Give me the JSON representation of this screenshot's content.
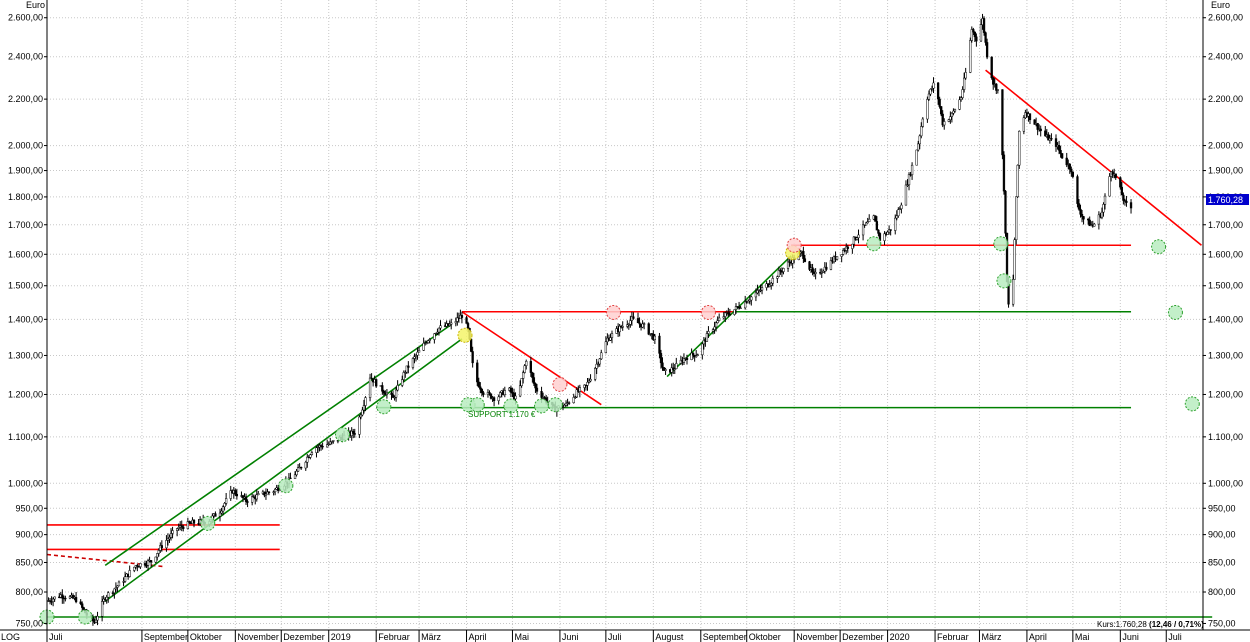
{
  "chart_data": {
    "type": "candlestick",
    "scale": "log",
    "y_unit": "Euro",
    "ylim": [
      740,
      2620
    ],
    "y_ticks": [
      {
        "v": 750,
        "label": "750,00"
      },
      {
        "v": 800,
        "label": "800,00"
      },
      {
        "v": 850,
        "label": "850,00"
      },
      {
        "v": 900,
        "label": "900,00"
      },
      {
        "v": 950,
        "label": "950,00"
      },
      {
        "v": 1000,
        "label": "1.000,00"
      },
      {
        "v": 1100,
        "label": "1.100,00"
      },
      {
        "v": 1200,
        "label": "1.200,00"
      },
      {
        "v": 1300,
        "label": "1.300,00"
      },
      {
        "v": 1400,
        "label": "1.400,00"
      },
      {
        "v": 1500,
        "label": "1.500,00"
      },
      {
        "v": 1600,
        "label": "1.600,00"
      },
      {
        "v": 1700,
        "label": "1.700,00"
      },
      {
        "v": 1800,
        "label": "1.800,00"
      },
      {
        "v": 1900,
        "label": "1.900,00"
      },
      {
        "v": 2000,
        "label": "2.000,00"
      },
      {
        "v": 2200,
        "label": "2.200,00"
      },
      {
        "v": 2400,
        "label": "2.400,00"
      },
      {
        "v": 2600,
        "label": "2.600,00"
      }
    ],
    "x_range": [
      "2018-07-01",
      "2020-07-25"
    ],
    "x_ticks": [
      {
        "date": "2018-07-01",
        "label": "Juli"
      },
      {
        "date": "2018-09-01",
        "label": "September"
      },
      {
        "date": "2018-10-01",
        "label": "Oktober"
      },
      {
        "date": "2018-11-01",
        "label": "November"
      },
      {
        "date": "2018-12-01",
        "label": "Dezember"
      },
      {
        "date": "2019-01-01",
        "label": "2019"
      },
      {
        "date": "2019-02-01",
        "label": "Februar"
      },
      {
        "date": "2019-03-01",
        "label": "März"
      },
      {
        "date": "2019-04-01",
        "label": "April"
      },
      {
        "date": "2019-05-01",
        "label": "Mai"
      },
      {
        "date": "2019-06-01",
        "label": "Juni"
      },
      {
        "date": "2019-07-01",
        "label": "Juli"
      },
      {
        "date": "2019-08-01",
        "label": "August"
      },
      {
        "date": "2019-09-01",
        "label": "September"
      },
      {
        "date": "2019-10-01",
        "label": "Oktober"
      },
      {
        "date": "2019-11-01",
        "label": "November"
      },
      {
        "date": "2019-12-01",
        "label": "Dezember"
      },
      {
        "date": "2020-01-01",
        "label": "2020"
      },
      {
        "date": "2020-02-01",
        "label": "Februar"
      },
      {
        "date": "2020-03-01",
        "label": "März"
      },
      {
        "date": "2020-04-01",
        "label": "April"
      },
      {
        "date": "2020-05-01",
        "label": "Mai"
      },
      {
        "date": "2020-06-01",
        "label": "Juni"
      },
      {
        "date": "2020-07-01",
        "label": "Juli"
      }
    ],
    "scale_label": "LOG",
    "price_path": [
      [
        "2018-07-01",
        785
      ],
      [
        "2018-07-10",
        795
      ],
      [
        "2018-07-20",
        788
      ],
      [
        "2018-07-28",
        760
      ],
      [
        "2018-08-01",
        752
      ],
      [
        "2018-08-08",
        792
      ],
      [
        "2018-08-18",
        815
      ],
      [
        "2018-08-28",
        845
      ],
      [
        "2018-09-07",
        852
      ],
      [
        "2018-09-14",
        880
      ],
      [
        "2018-09-24",
        912
      ],
      [
        "2018-10-04",
        922
      ],
      [
        "2018-10-14",
        925
      ],
      [
        "2018-10-22",
        945
      ],
      [
        "2018-10-30",
        985
      ],
      [
        "2018-11-08",
        965
      ],
      [
        "2018-11-16",
        975
      ],
      [
        "2018-11-26",
        985
      ],
      [
        "2018-12-06",
        1005
      ],
      [
        "2018-12-14",
        1035
      ],
      [
        "2018-12-22",
        1075
      ],
      [
        "2019-01-02",
        1085
      ],
      [
        "2019-01-10",
        1100
      ],
      [
        "2019-01-18",
        1110
      ],
      [
        "2019-01-24",
        1180
      ],
      [
        "2019-01-28",
        1245
      ],
      [
        "2019-02-04",
        1215
      ],
      [
        "2019-02-12",
        1190
      ],
      [
        "2019-02-20",
        1260
      ],
      [
        "2019-02-28",
        1305
      ],
      [
        "2019-03-06",
        1340
      ],
      [
        "2019-03-14",
        1375
      ],
      [
        "2019-03-22",
        1385
      ],
      [
        "2019-03-29",
        1412
      ],
      [
        "2019-04-02",
        1370
      ],
      [
        "2019-04-06",
        1245
      ],
      [
        "2019-04-12",
        1205
      ],
      [
        "2019-04-20",
        1190
      ],
      [
        "2019-04-28",
        1215
      ],
      [
        "2019-05-04",
        1185
      ],
      [
        "2019-05-10",
        1290
      ],
      [
        "2019-05-16",
        1215
      ],
      [
        "2019-05-22",
        1190
      ],
      [
        "2019-05-28",
        1165
      ],
      [
        "2019-06-05",
        1175
      ],
      [
        "2019-06-12",
        1205
      ],
      [
        "2019-06-18",
        1220
      ],
      [
        "2019-06-26",
        1285
      ],
      [
        "2019-07-02",
        1345
      ],
      [
        "2019-07-10",
        1375
      ],
      [
        "2019-07-18",
        1400
      ],
      [
        "2019-07-26",
        1380
      ],
      [
        "2019-08-02",
        1345
      ],
      [
        "2019-08-08",
        1255
      ],
      [
        "2019-08-14",
        1265
      ],
      [
        "2019-08-22",
        1295
      ],
      [
        "2019-08-30",
        1305
      ],
      [
        "2019-09-06",
        1360
      ],
      [
        "2019-09-14",
        1405
      ],
      [
        "2019-09-22",
        1425
      ],
      [
        "2019-10-01",
        1455
      ],
      [
        "2019-10-08",
        1480
      ],
      [
        "2019-10-15",
        1505
      ],
      [
        "2019-10-22",
        1540
      ],
      [
        "2019-10-30",
        1580
      ],
      [
        "2019-11-06",
        1605
      ],
      [
        "2019-11-10",
        1565
      ],
      [
        "2019-11-14",
        1530
      ],
      [
        "2019-11-22",
        1560
      ],
      [
        "2019-11-30",
        1600
      ],
      [
        "2019-12-08",
        1635
      ],
      [
        "2019-12-16",
        1690
      ],
      [
        "2019-12-23",
        1725
      ],
      [
        "2019-12-27",
        1650
      ],
      [
        "2020-01-04",
        1690
      ],
      [
        "2020-01-10",
        1780
      ],
      [
        "2020-01-16",
        1895
      ],
      [
        "2020-01-21",
        2010
      ],
      [
        "2020-01-26",
        2195
      ],
      [
        "2020-02-01",
        2280
      ],
      [
        "2020-02-06",
        2095
      ],
      [
        "2020-02-12",
        2130
      ],
      [
        "2020-02-18",
        2210
      ],
      [
        "2020-02-22",
        2360
      ],
      [
        "2020-02-25",
        2540
      ],
      [
        "2020-02-28",
        2490
      ],
      [
        "2020-03-03",
        2590
      ],
      [
        "2020-03-06",
        2410
      ],
      [
        "2020-03-10",
        2275
      ],
      [
        "2020-03-14",
        2230
      ],
      [
        "2020-03-17",
        1830
      ],
      [
        "2020-03-19",
        1510
      ],
      [
        "2020-03-21",
        1375
      ],
      [
        "2020-03-23",
        1520
      ],
      [
        "2020-03-25",
        1790
      ],
      [
        "2020-03-27",
        2060
      ],
      [
        "2020-03-31",
        2145
      ],
      [
        "2020-04-06",
        2095
      ],
      [
        "2020-04-12",
        2045
      ],
      [
        "2020-04-20",
        2005
      ],
      [
        "2020-04-24",
        1955
      ],
      [
        "2020-04-30",
        1905
      ],
      [
        "2020-05-04",
        1770
      ],
      [
        "2020-05-08",
        1720
      ],
      [
        "2020-05-14",
        1695
      ],
      [
        "2020-05-20",
        1745
      ],
      [
        "2020-05-26",
        1905
      ],
      [
        "2020-05-30",
        1860
      ],
      [
        "2020-06-04",
        1775
      ],
      [
        "2020-06-08",
        1760.28
      ]
    ],
    "lines": [
      {
        "color": "#ff0000",
        "style": "solid",
        "from": [
          "2019-03-29",
          1422
        ],
        "to": [
          "2019-09-22",
          1422
        ]
      },
      {
        "color": "#ff0000",
        "style": "solid",
        "from": [
          "2019-03-29",
          1422
        ],
        "to": [
          "2019-06-28",
          1175
        ]
      },
      {
        "color": "#ff0000",
        "style": "solid",
        "from": [
          "2019-10-30",
          1630
        ],
        "to": [
          "2020-06-08",
          1630
        ]
      },
      {
        "color": "#ff0000",
        "style": "solid",
        "from": [
          "2020-03-05",
          2335
        ],
        "to": [
          "2020-07-24",
          1630
        ]
      },
      {
        "color": "#ff0000",
        "style": "solid",
        "from": [
          "2018-07-01",
          918
        ],
        "to": [
          "2018-11-30",
          918
        ]
      },
      {
        "color": "#ff0000",
        "style": "solid",
        "from": [
          "2018-07-01",
          873
        ],
        "to": [
          "2018-11-30",
          873
        ]
      },
      {
        "color": "#cc0000",
        "style": "dashed",
        "from": [
          "2018-07-01",
          864
        ],
        "to": [
          "2018-09-15",
          843
        ]
      },
      {
        "color": "#008000",
        "style": "solid",
        "from": [
          "2018-07-01",
          760
        ],
        "to": [
          "2020-07-31",
          760
        ]
      },
      {
        "color": "#008000",
        "style": "solid",
        "from": [
          "2019-02-01",
          1168
        ],
        "to": [
          "2020-06-08",
          1168
        ]
      },
      {
        "color": "#008000",
        "style": "solid",
        "from": [
          "2019-09-22",
          1422
        ],
        "to": [
          "2020-06-08",
          1422
        ]
      },
      {
        "color": "#008000",
        "style": "solid",
        "from": [
          "2018-08-08",
          845
        ],
        "to": [
          "2019-03-22",
          1385
        ]
      },
      {
        "color": "#008000",
        "style": "solid",
        "from": [
          "2018-08-08",
          785
        ],
        "to": [
          "2019-03-29",
          1345
        ]
      },
      {
        "color": "#008000",
        "style": "solid",
        "from": [
          "2019-08-10",
          1245
        ],
        "to": [
          "2019-10-30",
          1595
        ]
      }
    ],
    "markers": [
      {
        "date": "2018-07-01",
        "value": 760,
        "color": "green"
      },
      {
        "date": "2018-07-26",
        "value": 760,
        "color": "green"
      },
      {
        "date": "2018-10-14",
        "value": 921,
        "color": "green"
      },
      {
        "date": "2018-12-04",
        "value": 995,
        "color": "green"
      },
      {
        "date": "2019-01-10",
        "value": 1105,
        "color": "green"
      },
      {
        "date": "2019-02-06",
        "value": 1170,
        "color": "green"
      },
      {
        "date": "2019-04-02",
        "value": 1175,
        "color": "green"
      },
      {
        "date": "2019-04-08",
        "value": 1175,
        "color": "green"
      },
      {
        "date": "2019-04-30",
        "value": 1172,
        "color": "green"
      },
      {
        "date": "2019-05-20",
        "value": 1172,
        "color": "green"
      },
      {
        "date": "2019-05-29",
        "value": 1175,
        "color": "green"
      },
      {
        "date": "2019-03-31",
        "value": 1355,
        "color": "yellow"
      },
      {
        "date": "2019-10-31",
        "value": 1605,
        "color": "yellow"
      },
      {
        "date": "2019-06-01",
        "value": 1225,
        "color": "red"
      },
      {
        "date": "2019-07-06",
        "value": 1420,
        "color": "red"
      },
      {
        "date": "2019-09-06",
        "value": 1420,
        "color": "red"
      },
      {
        "date": "2019-11-01",
        "value": 1630,
        "color": "red"
      },
      {
        "date": "2019-12-23",
        "value": 1635,
        "color": "green"
      },
      {
        "date": "2020-03-15",
        "value": 1635,
        "color": "green"
      },
      {
        "date": "2020-03-17",
        "value": 1515,
        "color": "green"
      },
      {
        "date": "2020-06-26",
        "value": 1625,
        "color": "green"
      },
      {
        "date": "2020-07-07",
        "value": 1420,
        "color": "green"
      },
      {
        "date": "2020-07-18",
        "value": 1177,
        "color": "green"
      }
    ],
    "annotations": [
      {
        "text": "SUPPORT 1.170 €",
        "date": "2019-04-02",
        "value": 1160,
        "color": "#008000"
      }
    ],
    "current_price": {
      "value": 1760.28,
      "label": "1.760,28"
    },
    "footer": {
      "kurs_label": "Kurs:1.760,28",
      "change": "(12,46 / 0,71%)"
    }
  }
}
